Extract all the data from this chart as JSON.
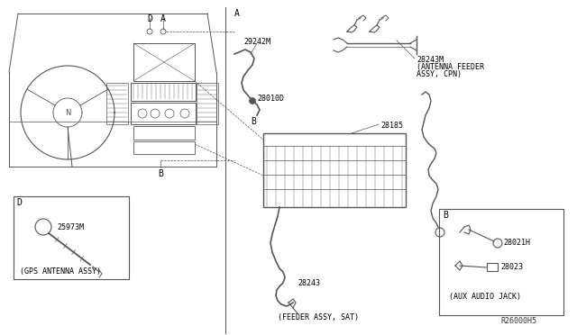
{
  "bg_color": "#ffffff",
  "border_color": "#000000",
  "line_color": "#555555",
  "text_color": "#000000",
  "fig_width": 6.4,
  "fig_height": 3.72,
  "dpi": 100,
  "labels": {
    "A": "A",
    "B": "B",
    "D": "D",
    "part_29242M": "29242M",
    "part_28010D": "28010D",
    "part_28243M": "28243M",
    "part_28243M_desc1": "(ANTENNA FEEDER",
    "part_28243M_desc2": "ASSY, CPN)",
    "part_28185": "28185",
    "part_28243": "28243",
    "part_28243_desc": "(FEEDER ASSY, SAT)",
    "part_25973M": "25973M",
    "part_D_desc": "(GPS ANTENNA ASSY)",
    "part_28021H": "28021H",
    "part_28023": "28023",
    "part_B_desc": "(AUX AUDIO JACK)",
    "box_B_label": "B",
    "part_number_ref": "R26000H5"
  }
}
